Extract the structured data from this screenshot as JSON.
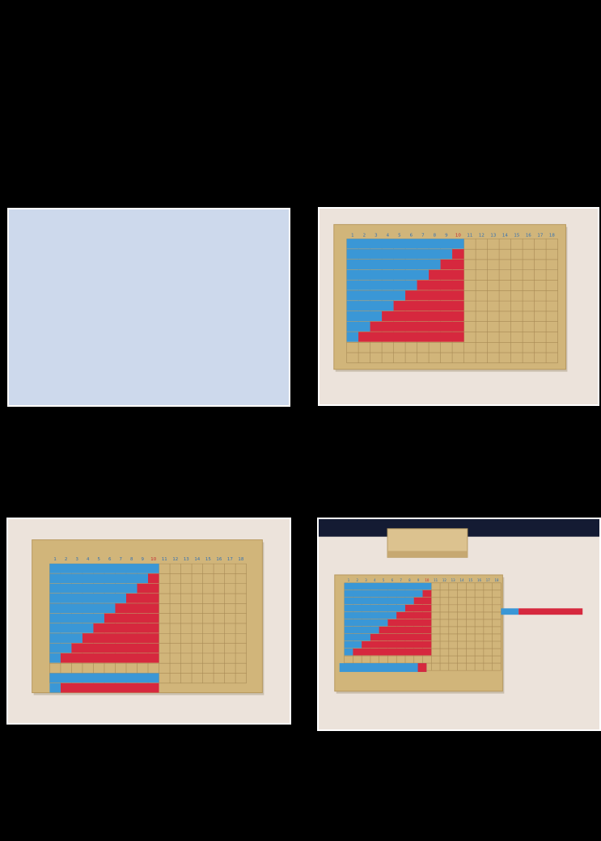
{
  "colors": {
    "page_background": "#000000",
    "placeholder_fill": "#cdd9ec",
    "table_cloth": "#ece3db",
    "board": "#d1b57a",
    "board_edge": "#b8995e",
    "grid_line": "#a88a55",
    "bead_blue": "#3a97d6",
    "bead_red": "#d6283e",
    "blue_numbers": "#2f6fb3",
    "red_number": "#c4242f"
  },
  "board": {
    "header_numbers": [
      "1",
      "2",
      "3",
      "4",
      "5",
      "6",
      "7",
      "8",
      "9",
      "10",
      "11",
      "12",
      "13",
      "14",
      "15",
      "16",
      "17",
      "18"
    ],
    "red_header_index": 9,
    "rows": 12,
    "columns": 18
  },
  "photos": [
    {
      "label": "empty-placeholder"
    },
    {
      "label": "staircase-on-board",
      "staircase_rows": 9,
      "extra_strip": false
    },
    {
      "label": "staircase-plus-strip",
      "staircase_rows": 9,
      "extra_strip": true
    },
    {
      "label": "staircase-box-and-strip",
      "staircase_rows": 9,
      "extra_strip": true
    }
  ]
}
